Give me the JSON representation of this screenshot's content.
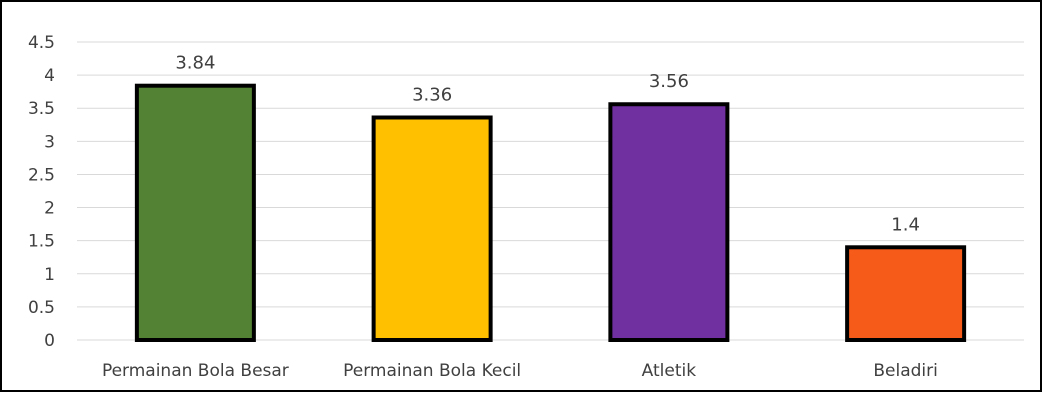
{
  "chart_data": {
    "type": "bar",
    "title": "",
    "xlabel": "",
    "ylabel": "",
    "categories": [
      "Permainan Bola Besar",
      "Permainan Bola Kecil",
      "Atletik",
      "Beladiri"
    ],
    "values": [
      3.84,
      3.36,
      3.56,
      1.4
    ],
    "value_labels": [
      "3.84",
      "3.36",
      "3.56",
      "1.4"
    ],
    "bar_colors": [
      "#548235",
      "#FFC000",
      "#7030A0",
      "#F75B1A"
    ],
    "bar_outline_color": "#000000",
    "ylim": [
      0,
      4.5
    ],
    "y_ticks": [
      0,
      0.5,
      1,
      1.5,
      2,
      2.5,
      3,
      3.5,
      4,
      4.5
    ],
    "y_tick_labels": [
      "0",
      "0.5",
      "1",
      "1.5",
      "2",
      "2.5",
      "3",
      "3.5",
      "4",
      "4.5"
    ],
    "grid": true,
    "grid_color": "#D9D9D9",
    "legend": "none"
  }
}
